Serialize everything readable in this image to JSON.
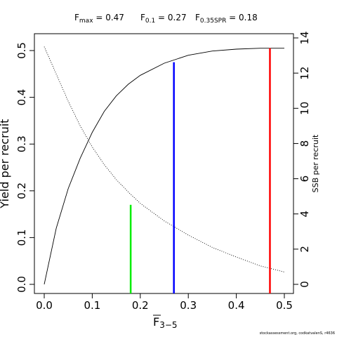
{
  "chart_data": {
    "type": "line",
    "title_parts": {
      "fmax_label": "F",
      "fmax_sub": "max",
      "fmax_value": " = 0.47",
      "f01_label": "F",
      "f01_sub": "0.1",
      "f01_value": " = 0.27",
      "f035_label": "F",
      "f035_sub": "0.35SPR",
      "f035_value": " = 0.18"
    },
    "xlabel_main": "F",
    "xlabel_sub": "3−5",
    "ylabel": "Yield per recruit",
    "y2label": "SSB per recruit",
    "xlim": [
      0,
      0.5
    ],
    "ylim": [
      0,
      0.5
    ],
    "y2lim": [
      0,
      14
    ],
    "x_ticks": [
      "0.0",
      "0.1",
      "0.2",
      "0.3",
      "0.4",
      "0.5"
    ],
    "y_ticks": [
      "0.0",
      "0.1",
      "0.2",
      "0.3",
      "0.4",
      "0.5"
    ],
    "y2_ticks": [
      "0",
      "2",
      "4",
      "6",
      "8",
      "10",
      "12",
      "14"
    ],
    "series": [
      {
        "name": "",
        "axis": "left",
        "style": "solid",
        "x": [
          0,
          0.025,
          0.05,
          0.075,
          0.1,
          0.125,
          0.15,
          0.175,
          0.2,
          0.25,
          0.3,
          0.35,
          0.4,
          0.45,
          0.5
        ],
        "values": [
          0,
          0.12,
          0.205,
          0.27,
          0.325,
          0.37,
          0.403,
          0.428,
          0.447,
          0.473,
          0.49,
          0.499,
          0.503,
          0.505,
          0.505
        ]
      },
      {
        "name": "",
        "axis": "right",
        "style": "dotted",
        "x": [
          0,
          0.025,
          0.05,
          0.075,
          0.1,
          0.125,
          0.15,
          0.175,
          0.2,
          0.25,
          0.3,
          0.35,
          0.4,
          0.45,
          0.5
        ],
        "values": [
          13.5,
          11.95,
          10.4,
          9.0,
          7.8,
          6.8,
          5.95,
          5.25,
          4.6,
          3.6,
          2.8,
          2.1,
          1.55,
          1.05,
          0.7
        ]
      }
    ],
    "reference_lines": [
      {
        "x": 0.18,
        "y": 0.17,
        "color": "#00ee00"
      },
      {
        "x": 0.27,
        "y": 0.475,
        "color": "#0000ff"
      },
      {
        "x": 0.47,
        "y": 0.505,
        "color": "#ff0000"
      }
    ],
    "grid": false,
    "legend": "none"
  },
  "footer": "stockassessment.org, codkatvalenS, r4636"
}
